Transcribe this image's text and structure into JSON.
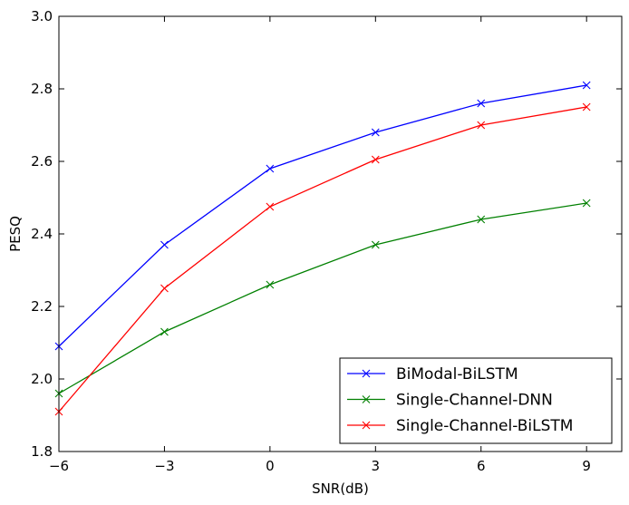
{
  "chart_data": {
    "type": "line",
    "xlabel": "SNR(dB)",
    "ylabel": "PESQ",
    "x": [
      -6,
      -3,
      0,
      3,
      6,
      9
    ],
    "xlim": [
      -6,
      10
    ],
    "ylim": [
      1.8,
      3.0
    ],
    "xticks": [
      "−6",
      "−3",
      "0",
      "3",
      "6",
      "9"
    ],
    "xtick_values": [
      -6,
      -3,
      0,
      3,
      6,
      9
    ],
    "yticks": [
      "1.8",
      "2.0",
      "2.2",
      "2.4",
      "2.6",
      "2.8",
      "3.0"
    ],
    "ytick_values": [
      1.8,
      2.0,
      2.2,
      2.4,
      2.6,
      2.8,
      3.0
    ],
    "grid": false,
    "legend_position": "lower-right",
    "marker": "x",
    "series": [
      {
        "name": "BiModal-BiLSTM",
        "color": "#0000ff",
        "values": [
          2.09,
          2.37,
          2.58,
          2.68,
          2.76,
          2.81
        ]
      },
      {
        "name": "Single-Channel-DNN",
        "color": "#008000",
        "values": [
          1.96,
          2.13,
          2.26,
          2.37,
          2.44,
          2.485
        ]
      },
      {
        "name": "Single-Channel-BiLSTM",
        "color": "#ff0000",
        "values": [
          1.91,
          2.25,
          2.475,
          2.605,
          2.7,
          2.75
        ]
      }
    ]
  }
}
